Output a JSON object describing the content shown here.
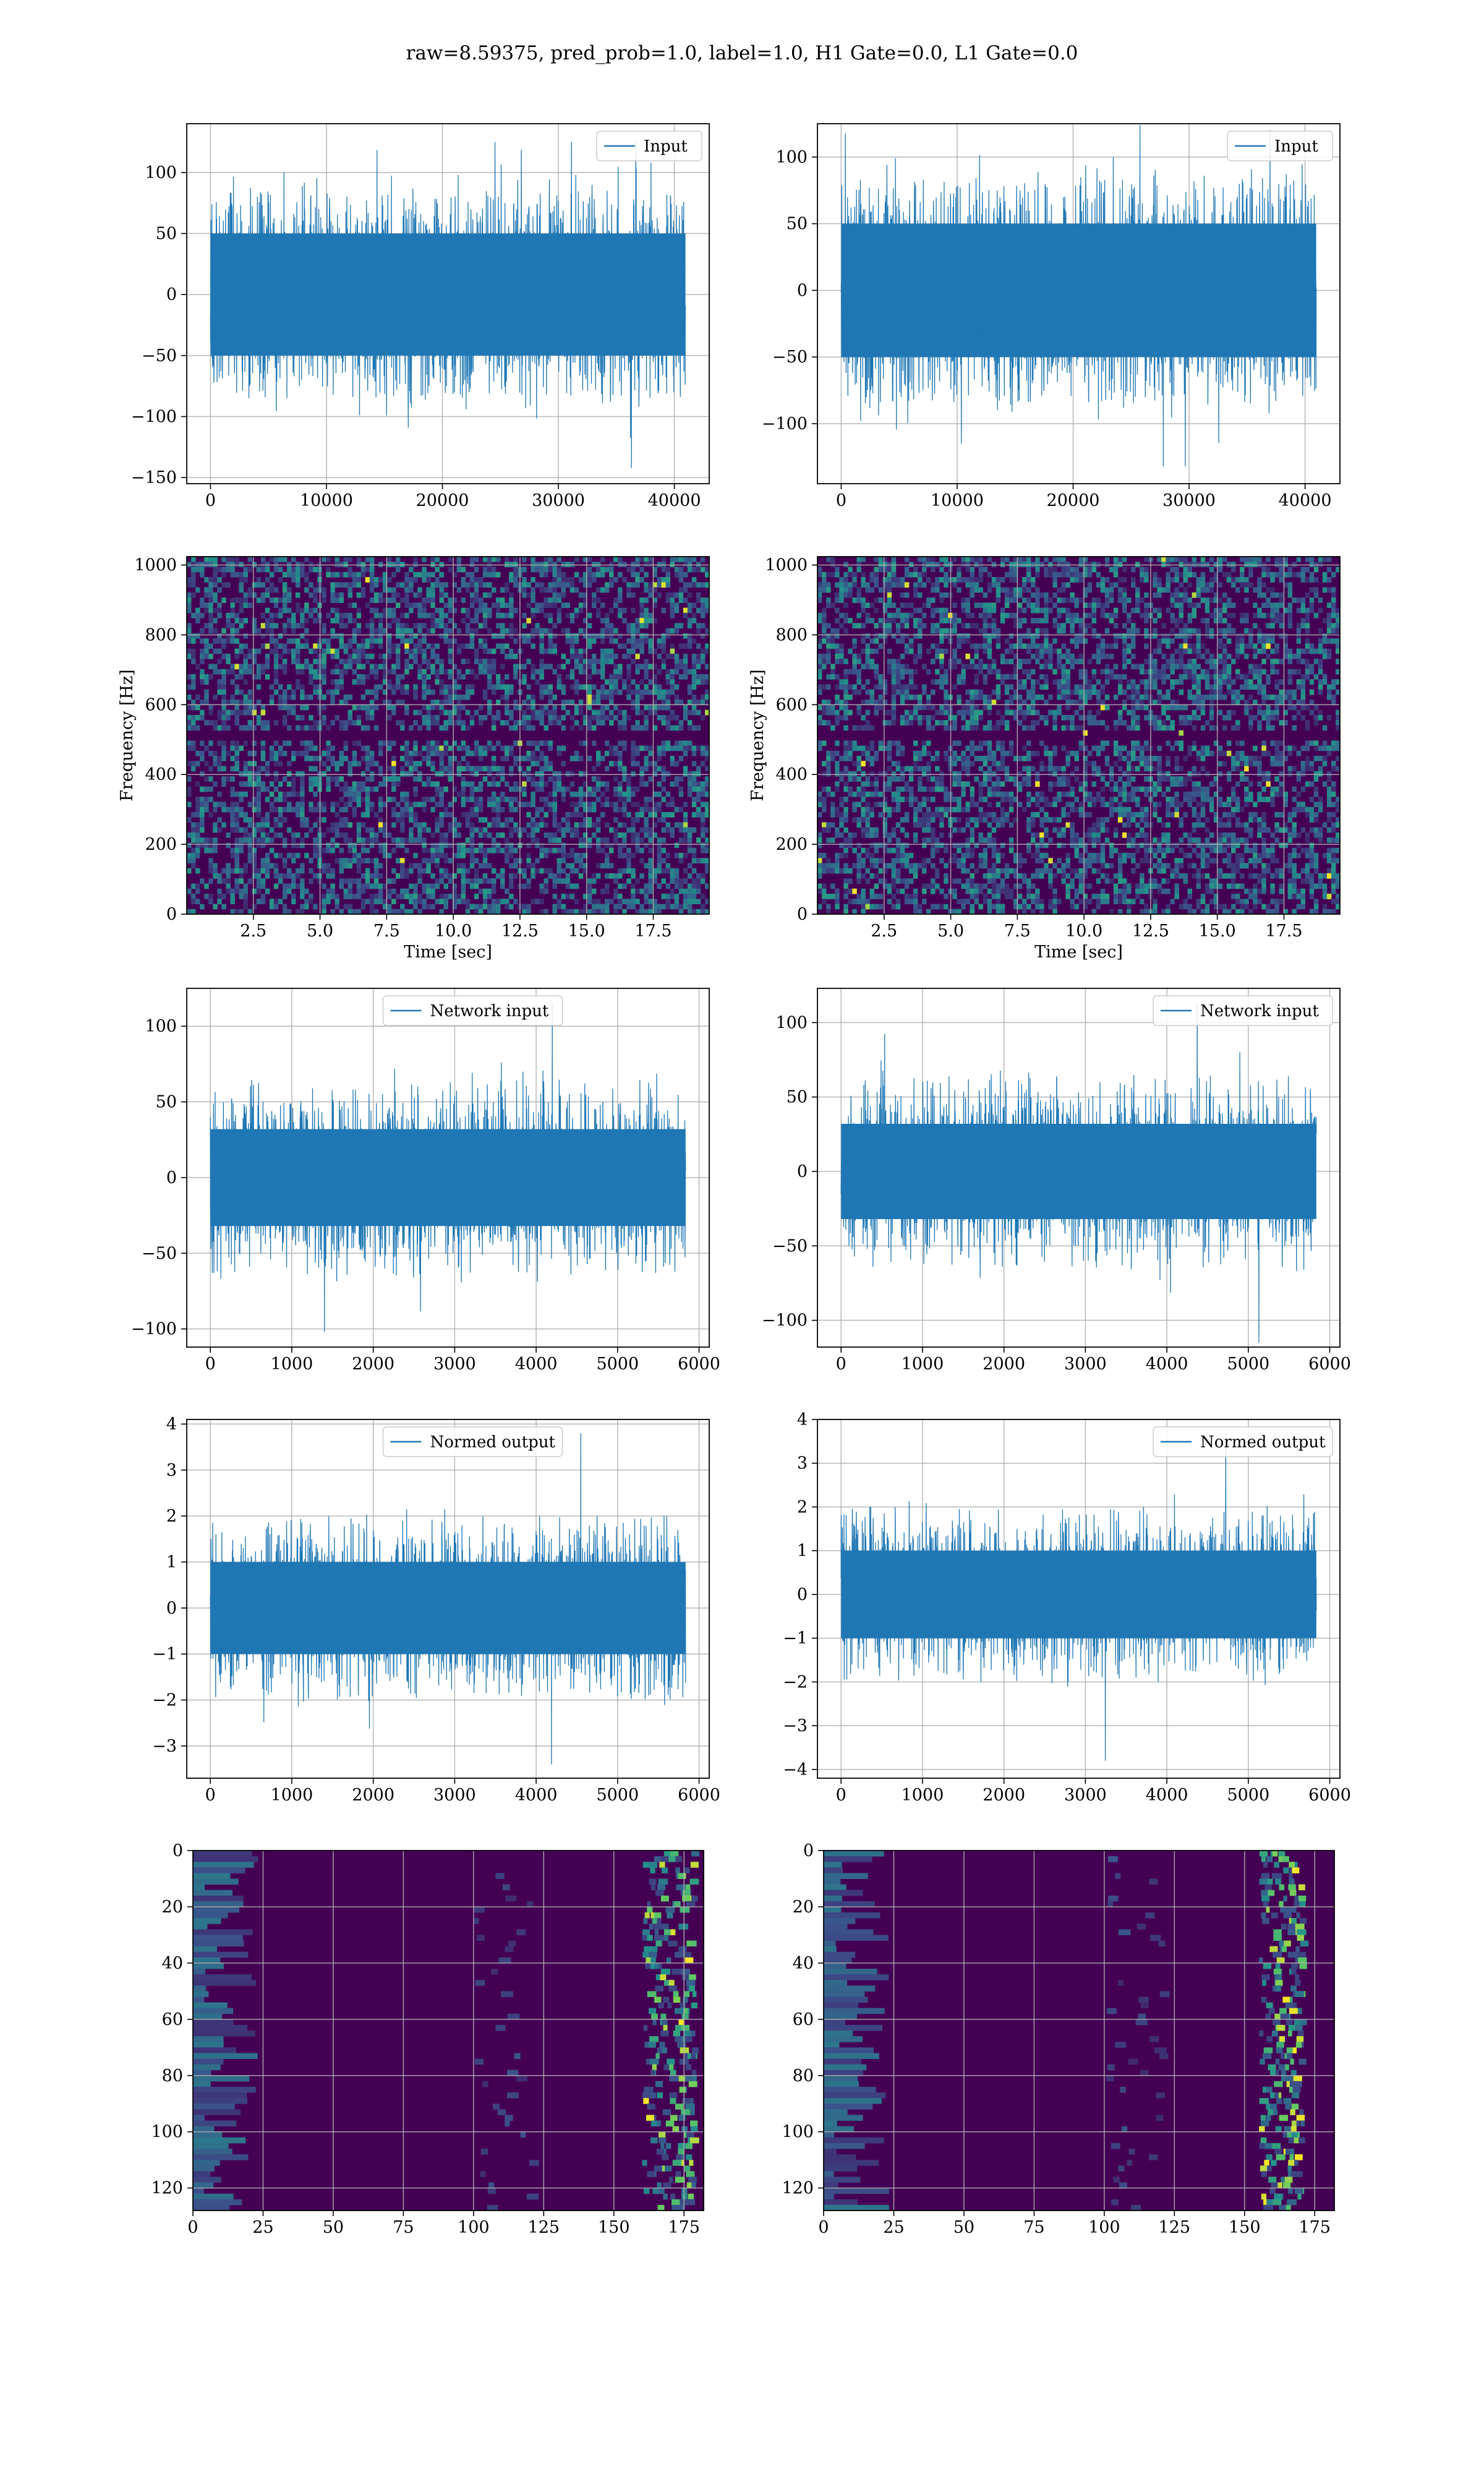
{
  "suptitle": "raw=8.59375, pred_prob=1.0, label=1.0, H1 Gate=0.0, L1 Gate=0.0",
  "colors": {
    "series": "#1f77b4",
    "grid": "#b0b0b0",
    "viridis_low": "#440154",
    "viridis_mid": "#21918c",
    "viridis_high": "#fde725"
  },
  "chart_data": [
    {
      "id": "input-left",
      "type": "line",
      "legend": "Input",
      "legend_loc": "upper right",
      "x_range": [
        0,
        40960
      ],
      "xlim": [
        -2048,
        43008
      ],
      "ylim": [
        -155,
        140
      ],
      "xticks": [
        0,
        10000,
        20000,
        30000,
        40000
      ],
      "yticks": [
        -150,
        -100,
        -50,
        0,
        50,
        100
      ],
      "envelope": {
        "core_amplitude": 50,
        "typical_peak": 85,
        "max": 125,
        "min": -142
      },
      "grid": true
    },
    {
      "id": "input-right",
      "type": "line",
      "legend": "Input",
      "legend_loc": "upper right",
      "x_range": [
        0,
        40960
      ],
      "xlim": [
        -2048,
        43008
      ],
      "ylim": [
        -145,
        125
      ],
      "xticks": [
        0,
        10000,
        20000,
        30000,
        40000
      ],
      "yticks": [
        -100,
        -50,
        0,
        50,
        100
      ],
      "envelope": {
        "core_amplitude": 50,
        "typical_peak": 85,
        "max": 124,
        "min": -132
      },
      "grid": true
    },
    {
      "id": "spectrogram-left",
      "type": "heatmap",
      "colormap": "viridis",
      "xlabel": "Time [sec]",
      "ylabel": "Frequency [Hz]",
      "xlim": [
        0,
        19.6
      ],
      "ylim": [
        0,
        1024
      ],
      "xticks": [
        2.5,
        5.0,
        7.5,
        10.0,
        12.5,
        15.0,
        17.5
      ],
      "yticks": [
        0,
        200,
        400,
        600,
        800,
        1000
      ],
      "dark_band_hz": 512,
      "grid": true
    },
    {
      "id": "spectrogram-right",
      "type": "heatmap",
      "colormap": "viridis",
      "xlabel": "Time [sec]",
      "ylabel": "Frequency [Hz]",
      "xlim": [
        0,
        19.6
      ],
      "ylim": [
        0,
        1024
      ],
      "xticks": [
        2.5,
        5.0,
        7.5,
        10.0,
        12.5,
        15.0,
        17.5
      ],
      "yticks": [
        0,
        200,
        400,
        600,
        800,
        1000
      ],
      "dark_band_hz": 512,
      "grid": true
    },
    {
      "id": "network-input-left",
      "type": "line",
      "legend": "Network input",
      "legend_loc": "upper center",
      "x_range": [
        0,
        5835
      ],
      "xlim": [
        -290,
        6125
      ],
      "ylim": [
        -112,
        125
      ],
      "xticks": [
        0,
        1000,
        2000,
        3000,
        4000,
        5000,
        6000
      ],
      "yticks": [
        -100,
        -50,
        0,
        50,
        100
      ],
      "envelope": {
        "core_amplitude": 32,
        "typical_peak": 65,
        "max": 115,
        "min": -102
      },
      "grid": true
    },
    {
      "id": "network-input-right",
      "type": "line",
      "legend": "Network input",
      "legend_loc": "upper right",
      "x_range": [
        0,
        5835
      ],
      "xlim": [
        -290,
        6125
      ],
      "ylim": [
        -118,
        123
      ],
      "xticks": [
        0,
        1000,
        2000,
        3000,
        4000,
        5000,
        6000
      ],
      "yticks": [
        -100,
        -50,
        0,
        50,
        100
      ],
      "envelope": {
        "core_amplitude": 32,
        "typical_peak": 65,
        "max": 112,
        "min": -115
      },
      "grid": true
    },
    {
      "id": "normed-output-left",
      "type": "line",
      "legend": "Normed output",
      "legend_loc": "upper center",
      "x_range": [
        0,
        5835
      ],
      "xlim": [
        -290,
        6125
      ],
      "ylim": [
        -3.7,
        4.1
      ],
      "xticks": [
        0,
        1000,
        2000,
        3000,
        4000,
        5000,
        6000
      ],
      "yticks": [
        -3,
        -2,
        -1,
        0,
        1,
        2,
        3,
        4
      ],
      "envelope": {
        "core_amplitude": 1.0,
        "typical_peak": 2.0,
        "max": 3.8,
        "min": -3.4
      },
      "grid": true
    },
    {
      "id": "normed-output-right",
      "type": "line",
      "legend": "Normed output",
      "legend_loc": "upper right",
      "x_range": [
        0,
        5835
      ],
      "xlim": [
        -290,
        6125
      ],
      "ylim": [
        -4.2,
        4.0
      ],
      "xticks": [
        0,
        1000,
        2000,
        3000,
        4000,
        5000,
        6000
      ],
      "yticks": [
        -4,
        -3,
        -2,
        -1,
        0,
        1,
        2,
        3,
        4
      ],
      "envelope": {
        "core_amplitude": 1.0,
        "typical_peak": 2.0,
        "max": 3.7,
        "min": -3.8
      },
      "grid": true
    },
    {
      "id": "feature-map-left",
      "type": "heatmap",
      "colormap": "viridis",
      "xlim": [
        0,
        182
      ],
      "ylim": [
        128,
        0
      ],
      "xticks": [
        0,
        25,
        50,
        75,
        100,
        125,
        150,
        175
      ],
      "yticks": [
        0,
        20,
        40,
        60,
        80,
        100,
        120
      ],
      "bright_columns": [
        160,
        178
      ],
      "grid": true
    },
    {
      "id": "feature-map-right",
      "type": "heatmap",
      "colormap": "viridis",
      "xlim": [
        0,
        182
      ],
      "ylim": [
        128,
        0
      ],
      "xticks": [
        0,
        25,
        50,
        75,
        100,
        125,
        150,
        175
      ],
      "yticks": [
        0,
        20,
        40,
        60,
        80,
        100,
        120
      ],
      "bright_columns": [
        155,
        170
      ],
      "grid": true
    }
  ]
}
